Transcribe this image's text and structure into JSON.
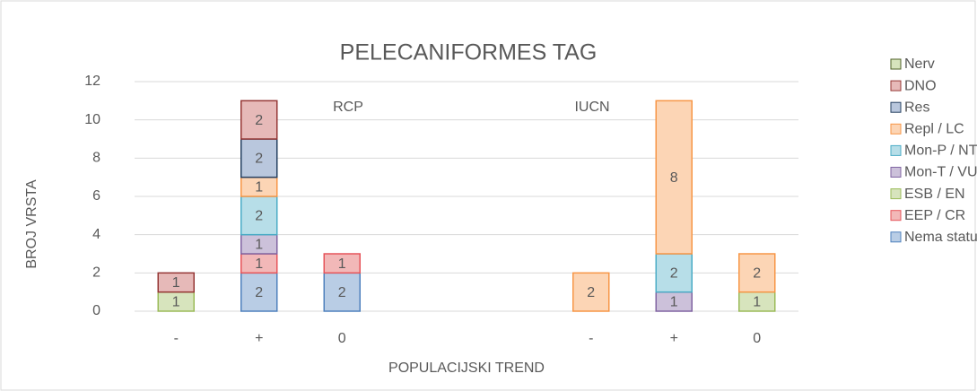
{
  "chart_data": {
    "type": "stacked_bar",
    "title": "PELECANIFORMES TAG",
    "y_label": "BROJ VRSTA",
    "x_label": "POPULACIJSKI TREND",
    "annotations": [
      "RCP",
      "IUCN"
    ],
    "categories": [
      "-",
      "+",
      "0",
      null,
      null,
      "-",
      "+",
      "0"
    ],
    "ylim": [
      0,
      12
    ],
    "yticks": [
      0,
      2,
      4,
      6,
      8,
      10,
      12
    ],
    "grid": true,
    "legend": "right",
    "series": [
      {
        "name": "Nema statusa",
        "color": "#b9cde5",
        "edge": "#4f81bd",
        "values": [
          null,
          2,
          2,
          null,
          null,
          null,
          null,
          null
        ]
      },
      {
        "name": "EEP / CR",
        "color": "#f2b8b8",
        "edge": "#e6545a",
        "values": [
          null,
          1,
          1,
          null,
          null,
          null,
          null,
          null
        ]
      },
      {
        "name": "ESB / EN",
        "color": "#d7e4bd",
        "edge": "#9bbb59",
        "values": [
          1,
          null,
          null,
          null,
          null,
          null,
          null,
          1
        ]
      },
      {
        "name": "Mon-T / VU",
        "color": "#ccc1da",
        "edge": "#8064a2",
        "values": [
          null,
          1,
          null,
          null,
          null,
          null,
          1,
          null
        ]
      },
      {
        "name": "Mon-P / NT",
        "color": "#b7dee8",
        "edge": "#4bacc6",
        "values": [
          null,
          2,
          null,
          null,
          null,
          null,
          2,
          null
        ]
      },
      {
        "name": "Repl / LC",
        "color": "#fcd5b5",
        "edge": "#f79646",
        "values": [
          null,
          1,
          null,
          null,
          null,
          2,
          8,
          2
        ]
      },
      {
        "name": "Res",
        "color": "#b9c7dd",
        "edge": "#254061",
        "values": [
          null,
          2,
          null,
          null,
          null,
          null,
          null,
          null
        ]
      },
      {
        "name": "DNO",
        "color": "#e6b9b8",
        "edge": "#953735",
        "values": [
          1,
          2,
          null,
          null,
          null,
          null,
          null,
          null
        ]
      },
      {
        "name": "Nerv",
        "color": "#d7e4bd",
        "edge": "#4f6228",
        "values": [
          null,
          null,
          null,
          null,
          null,
          null,
          null,
          null
        ]
      }
    ]
  }
}
